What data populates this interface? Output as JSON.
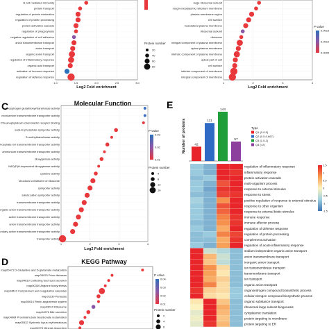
{
  "panels": {
    "a": {
      "letter": "",
      "title": "",
      "xlabel": "Log2 Fold enrichment",
      "xlim": [
        1.0,
        3.0
      ],
      "xticks": [
        "1.0",
        "1.5",
        "2.0",
        "2.5",
        "3.0"
      ],
      "terms": [
        "B cell mediated immunity",
        "protein transport",
        "regulation of protein maturation",
        "regulation of protein processing",
        "protein activation cascade",
        "regulation of phagocytosis",
        "negative regulation of cell adhesion",
        "anion transmembrane transport",
        "anion transport",
        "organic anion transport",
        "regulation of inflammatory response",
        "organic acid transport",
        "activation of immune response",
        "regulation of defense response"
      ],
      "values": [
        1.75,
        1.6,
        1.55,
        1.55,
        1.5,
        1.5,
        1.45,
        1.45,
        1.42,
        1.4,
        1.38,
        1.36,
        1.28,
        1.38
      ],
      "sizes": [
        2,
        2,
        3,
        3,
        3,
        2,
        2,
        3,
        3,
        4,
        4,
        3,
        3,
        5
      ],
      "colors": [
        "#e8383b",
        "#e8383b",
        "#e8383b",
        "#e8383b",
        "#e8383b",
        "#e8383b",
        "#8a58a8",
        "#e8383b",
        "#e8383b",
        "#e8383b",
        "#e8383b",
        "#e8383b",
        "#2e6fba",
        "#e8383b"
      ],
      "legend_color_title": "",
      "legend_size_title": "Protein number",
      "legend_size_values": [
        "20",
        "40",
        "60",
        "80"
      ]
    },
    "b": {
      "letter": "",
      "title": "",
      "xlabel": "Log2 Fold enrichment",
      "xlim": [
        1,
        4
      ],
      "xticks": [
        "1",
        "2",
        "3",
        "4"
      ],
      "terms": [
        "large ribosomal subunit",
        "rough endoplasmic reticulum membrane",
        "plasma membrane region",
        "cell surface",
        "basolateral plasma membrane",
        "ribosomal subunit",
        "ribosome",
        "integral component of plasma membrane",
        "apical plasma membrane",
        "intrinsic component of plasma membrane",
        "apical part of cell",
        "cell surface",
        "intrinsic component of membrane",
        "integral component of membrane"
      ],
      "values": [
        2.2,
        2.1,
        1.95,
        1.85,
        1.75,
        1.65,
        1.6,
        1.55,
        1.5,
        1.45,
        1.4,
        1.38,
        1.35,
        1.3
      ],
      "sizes": [
        2,
        2,
        3,
        3,
        3,
        2,
        2,
        4,
        3,
        4,
        3,
        3,
        5,
        5
      ],
      "colors": [
        "#e8383b",
        "#e8383b",
        "#e8383b",
        "#e8383b",
        "#e8383b",
        "#8a58a8",
        "#e8383b",
        "#e8383b",
        "#e8383b",
        "#e8383b",
        "#e8383b",
        "#e8383b",
        "#e8383b",
        "#e8383b"
      ],
      "legend_color_title": "P value",
      "legend_color_values": [
        "0.0015",
        "0.0010",
        "0.0005"
      ]
    },
    "c": {
      "letter": "C",
      "title": "Molecular Function",
      "xlabel": "Log2 Fold enrichment",
      "xlim": [
        1,
        4
      ],
      "xticks": [
        "1",
        "2",
        "3",
        "4"
      ],
      "terms": [
        "phosphogen glutathionyl/transferase activity",
        "monoamine transmembrane transporter activity",
        "C5a anaphylatoxin chemotactic receptor binding",
        "sodium phosphate symporter activity",
        "S-methyltransferase activity",
        "phosphate ion transmembrane transporter activity",
        "ammonium transmembrane transporter activity",
        "dioxygenase activity",
        "NAD(P)H-dependent dioxygenase activity",
        "cysteine activity",
        "structural constituent of ribosome",
        "symporter activity",
        "solute:cation symporter activity",
        "transmembrane transporter activity",
        "organic anion transmembrane transporter activity",
        "active transmembrane transporter activity",
        "anion transmembrane transporter activity",
        "secondary active transmembrane transporter activity",
        "transporter activity"
      ],
      "values": [
        3.9,
        3.9,
        3.85,
        2.9,
        2.75,
        2.6,
        2.5,
        2.4,
        2.3,
        2.2,
        2.1,
        2.0,
        1.9,
        1.8,
        1.7,
        1.6,
        1.5,
        1.4,
        1.05
      ],
      "sizes": [
        1,
        1,
        1,
        2,
        1,
        2,
        1,
        2,
        1,
        2,
        3,
        3,
        3,
        3,
        3,
        3,
        3,
        3,
        5
      ],
      "colors": [
        "#3b6fc0",
        "#3b6fc0",
        "#e0383b",
        "#e8383b",
        "#e8383b",
        "#e8383b",
        "#e8383b",
        "#e8383b",
        "#e8383b",
        "#e8383b",
        "#e8383b",
        "#e8383b",
        "#e8383b",
        "#e8383b",
        "#e8383b",
        "#e8383b",
        "#e8383b",
        "#e8383b",
        "#e8383b"
      ],
      "legend_color_title": "P value",
      "legend_color_values": [
        "0.03",
        "0.02",
        "0.01"
      ],
      "legend_size_title": "Protein number",
      "legend_size_values": [
        "4",
        "8",
        "12",
        "16"
      ]
    },
    "d": {
      "letter": "D",
      "title": "KEGG Pathway",
      "terms": [
        "map00471 D-Glutamine and D-glutamate metabolism",
        "map05020 Prion diseases",
        "map04610 Collecting duct acid secretion",
        "map00330 Arginine biosynthesis",
        "map04610 Complement and coagulation cascades",
        "map01130 Pertussis",
        "map04614 Renin-angiotensin system",
        "map03010 Ribosome",
        "map04976 Bile secretion",
        "map04964 Proximal tubule bicarbonate reclamation",
        "map05322 Systemic lupus erythematosus",
        "map04978 Mineral absorption",
        "map05134 Legionellosis"
      ],
      "values": [
        4.2,
        3.3,
        3.2,
        3.1,
        3.0,
        2.9,
        2.9,
        2.75,
        2.6,
        2.5,
        2.4,
        2.35,
        2.3
      ],
      "sizes": [
        1,
        1,
        1,
        1,
        4,
        2,
        1,
        2,
        2,
        1,
        3,
        1,
        2
      ],
      "colors": [
        "#e8383b",
        "#e8383b",
        "#e8383b",
        "#e8383b",
        "#e8383b",
        "#e8383b",
        "#e8383b",
        "#8a58a8",
        "#e8383b",
        "#e8383b",
        "#e8383b",
        "#e8383b",
        "#e8383b"
      ],
      "legend_color_title": "P value",
      "legend_color_values": [
        "0.04",
        "0.03",
        "0.02",
        "0.01"
      ],
      "legend_size_title": "Protein number",
      "legend_size_values": [
        "2",
        "4",
        "6",
        "8"
      ]
    },
    "e": {
      "letter": "E",
      "ylabel": "Number of proteins",
      "legend_title": "Type",
      "legend_entries": [
        "Q1 (0-0.5)",
        "Q2 (0.5-0.667)",
        "Q3 (1.5-2)",
        "Q4 (>2)"
      ],
      "bar_categories": [
        "Q1",
        "Q2",
        "Q3",
        "Q4"
      ],
      "bar_values": [
        42,
        111,
        144,
        57
      ],
      "bar_colors": [
        "#e8242a",
        "#2f6bc4",
        "#1f9e3a",
        "#8d3f9e"
      ],
      "colorbar_ticks": [
        "1.5",
        "1",
        "0.5",
        "0",
        "-0.5",
        "-1",
        "-1.5"
      ],
      "heatmap_rows": [
        "regulation of inflammatory response",
        "inflammatory response",
        "protein activation cascade",
        "multi-organism process",
        "response to external stimulus",
        "response to stress",
        "positive regulation of response to external stimulus",
        "response to other organism",
        "response to external biotic stimulus",
        "immune response",
        "immune effector process",
        "regulation of defense response",
        "regulation of protein processing",
        "complement activation",
        "regulation of acute inflammatory response",
        "sodium-independent organic anion transport",
        "anion transmembrane transport",
        "inorganic anion transport",
        "ion transmembrane transport",
        "transmembrane transport",
        "ion transport",
        "organic anion transport",
        "organonitrogen compound biosynthetic process",
        "cellular nitrogen compound biosynthetic process",
        "organic substance transport",
        "ribosomal large subunit biogenesis",
        "cytoplasmic translation",
        "protein targeting to membrane",
        "protein targeting to ER"
      ],
      "heatmap_values": [
        [
          -0.8,
          -1.0,
          1.6,
          1.5
        ],
        [
          -0.8,
          -1.0,
          1.6,
          1.4
        ],
        [
          -0.9,
          -0.8,
          1.5,
          1.5
        ],
        [
          -0.8,
          -1.0,
          1.2,
          1.6
        ],
        [
          -0.8,
          -1.1,
          1.4,
          1.5
        ],
        [
          -0.9,
          -1.0,
          1.3,
          1.4
        ],
        [
          -0.7,
          -1.0,
          0.8,
          1.6
        ],
        [
          -0.8,
          -1.0,
          1.2,
          1.5
        ],
        [
          -0.8,
          -1.0,
          1.1,
          1.5
        ],
        [
          -0.8,
          -1.0,
          0.9,
          1.4
        ],
        [
          -0.9,
          -1.0,
          0.8,
          1.4
        ],
        [
          -0.8,
          -1.0,
          0.6,
          1.5
        ],
        [
          -0.9,
          -0.8,
          0.9,
          1.3
        ],
        [
          -0.9,
          -0.9,
          0.6,
          1.4
        ],
        [
          -0.8,
          -1.0,
          0.7,
          1.5
        ],
        [
          1.6,
          -0.4,
          -0.6,
          -0.9
        ],
        [
          1.6,
          0.5,
          -0.4,
          -0.9
        ],
        [
          1.6,
          0.4,
          -0.5,
          -0.9
        ],
        [
          1.5,
          0.8,
          0.2,
          -0.9
        ],
        [
          1.6,
          0.7,
          0.1,
          -0.9
        ],
        [
          1.5,
          0.6,
          0.3,
          -0.9
        ],
        [
          1.6,
          0.9,
          0.2,
          -0.9
        ],
        [
          1.4,
          0.3,
          0.2,
          -0.8
        ],
        [
          1.5,
          0.2,
          0.1,
          -0.8
        ],
        [
          0.1,
          1.6,
          0.4,
          -0.9
        ],
        [
          0.0,
          1.5,
          0.6,
          -0.9
        ],
        [
          -0.2,
          1.6,
          0.5,
          -0.9
        ],
        [
          -0.1,
          1.5,
          0.4,
          -0.9
        ],
        [
          -0.2,
          1.4,
          0.5,
          -0.9
        ]
      ]
    }
  },
  "chart_data": [
    {
      "type": "scatter",
      "panel": "A",
      "xlabel": "Log2 Fold enrichment",
      "xlim": [
        1.0,
        3.0
      ]
    },
    {
      "type": "scatter",
      "panel": "B",
      "xlabel": "Log2 Fold enrichment",
      "xlim": [
        1,
        4
      ]
    },
    {
      "type": "scatter",
      "panel": "C",
      "title": "Molecular Function",
      "xlabel": "Log2 Fold enrichment",
      "xlim": [
        1,
        4
      ]
    },
    {
      "type": "scatter",
      "panel": "D",
      "title": "KEGG Pathway"
    },
    {
      "type": "bar",
      "panel": "E",
      "categories": [
        "Q1",
        "Q2",
        "Q3",
        "Q4"
      ],
      "values": [
        42,
        111,
        144,
        57
      ],
      "ylabel": "Number of proteins"
    },
    {
      "type": "heatmap",
      "panel": "E",
      "columns": [
        "Q1",
        "Q2",
        "Q3",
        "Q4"
      ],
      "colorbar": [
        -1.5,
        1.5
      ]
    }
  ]
}
